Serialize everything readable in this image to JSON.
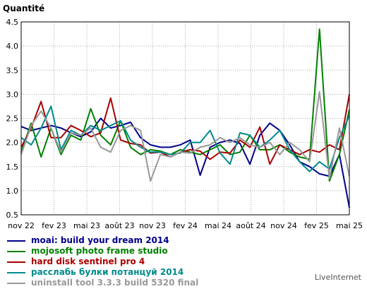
{
  "chart_data": {
    "type": "line",
    "title": "Quantité",
    "x_ticks": [
      "nov 22",
      "fev 23",
      "mai 23",
      "août 23",
      "nov 23",
      "fev 24",
      "mai 24",
      "août 24",
      "nov 24",
      "fev 25",
      "mai 25"
    ],
    "y_ticks": [
      "0.5",
      "1.0",
      "1.5",
      "2.0",
      "2.5",
      "3.0",
      "3.5",
      "4.0",
      "4.5"
    ],
    "ylim": [
      0.5,
      4.5
    ],
    "grid": true,
    "legend_position": "bottom-left",
    "series": [
      {
        "name": "moai: build your dream 2014",
        "color": "#00008b",
        "values": [
          2.33,
          2.25,
          2.3,
          2.35,
          2.3,
          2.2,
          2.12,
          2.22,
          2.5,
          2.3,
          2.35,
          2.42,
          2.1,
          1.95,
          1.9,
          1.9,
          1.95,
          2.05,
          1.32,
          1.9,
          2.0,
          2.05,
          1.98,
          1.55,
          2.15,
          2.4,
          2.25,
          1.95,
          1.6,
          1.5,
          1.35,
          1.3,
          1.75,
          0.65
        ]
      },
      {
        "name": "mojosoft photo frame studio",
        "color": "#008000",
        "values": [
          1.8,
          2.4,
          1.7,
          2.3,
          1.75,
          2.15,
          2.05,
          2.7,
          2.15,
          1.95,
          2.45,
          1.9,
          1.75,
          1.85,
          1.82,
          1.75,
          1.85,
          1.8,
          1.75,
          1.85,
          1.95,
          1.75,
          1.8,
          2.15,
          1.85,
          1.85,
          1.95,
          1.8,
          1.7,
          1.65,
          4.35,
          1.2,
          1.75,
          2.68
        ]
      },
      {
        "name": "hard disk sentinel pro 4",
        "color": "#aa0000",
        "values": [
          1.9,
          2.3,
          2.85,
          2.1,
          2.1,
          2.35,
          2.25,
          2.12,
          2.2,
          2.92,
          2.05,
          1.98,
          1.95,
          1.78,
          1.8,
          1.7,
          1.8,
          1.85,
          1.82,
          1.65,
          1.8,
          1.78,
          2.05,
          1.9,
          2.32,
          1.55,
          1.95,
          1.85,
          1.75,
          1.85,
          1.8,
          1.95,
          1.85,
          3.0
        ]
      },
      {
        "name": "расслабь булки потанцуй 2014",
        "color": "#008b8b",
        "values": [
          2.1,
          1.95,
          2.3,
          2.75,
          1.85,
          2.25,
          2.15,
          2.35,
          2.25,
          2.35,
          2.45,
          2.05,
          1.9,
          1.8,
          1.8,
          1.75,
          1.78,
          2.0,
          2.0,
          2.25,
          1.78,
          1.55,
          2.2,
          2.15,
          1.9,
          2.05,
          2.25,
          1.85,
          1.6,
          1.4,
          1.6,
          1.45,
          2.1,
          2.55
        ]
      },
      {
        "name": "uninstall tool 3.3.3 build 5320 final",
        "color": "#999999",
        "values": [
          1.75,
          2.35,
          2.65,
          2.3,
          1.8,
          2.2,
          2.15,
          2.3,
          1.9,
          1.8,
          2.25,
          2.35,
          2.25,
          1.2,
          1.75,
          1.7,
          1.8,
          1.78,
          1.9,
          1.95,
          2.1,
          2.0,
          2.1,
          1.95,
          1.9,
          2.0,
          1.75,
          2.0,
          1.85,
          1.6,
          3.05,
          1.25,
          2.3,
          1.3
        ]
      }
    ]
  },
  "brand": "LiveInternet"
}
